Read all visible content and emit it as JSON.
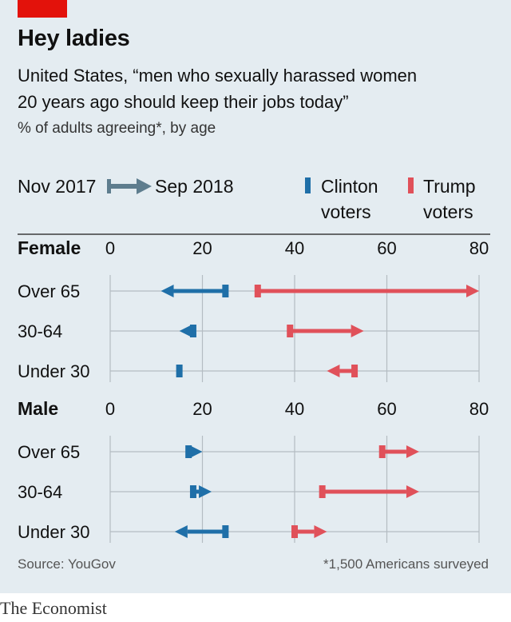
{
  "header": {
    "title": "Hey ladies",
    "subtitle_line1": "United States, “men who sexually harassed women",
    "subtitle_line2": "20 years ago should keep their jobs today”",
    "note": "% of adults agreeing*, by age"
  },
  "legend": {
    "from": "Nov 2017",
    "to": "Sep 2018",
    "clinton_line1": "Clinton",
    "clinton_line2": "voters",
    "trump_line1": "Trump",
    "trump_line2": "voters"
  },
  "colors": {
    "clinton": "#1f6fa8",
    "trump": "#e0515a",
    "legend_arrow": "#5e7d8e",
    "background": "#e4ecf1",
    "grid": "#b4bcc2"
  },
  "footer": {
    "source": "Source: YouGov",
    "footnote": "*1,500 Americans surveyed",
    "brand": "The Economist"
  },
  "chart_data": {
    "type": "arrow-dumbbell",
    "x_ticks": [
      0,
      20,
      40,
      60,
      80
    ],
    "xlim": [
      0,
      80
    ],
    "panels": [
      {
        "label": "Female",
        "rows": [
          {
            "category": "Over 65",
            "clinton": {
              "nov_2017": 25,
              "sep_2018": 11
            },
            "trump": {
              "nov_2017": 32,
              "sep_2018": 80
            }
          },
          {
            "category": "30-64",
            "clinton": {
              "nov_2017": 18,
              "sep_2018": 15
            },
            "trump": {
              "nov_2017": 39,
              "sep_2018": 55
            }
          },
          {
            "category": "Under 30",
            "clinton": {
              "nov_2017": 15,
              "sep_2018": 15
            },
            "trump": {
              "nov_2017": 53,
              "sep_2018": 47
            }
          }
        ]
      },
      {
        "label": "Male",
        "rows": [
          {
            "category": "Over 65",
            "clinton": {
              "nov_2017": 17,
              "sep_2018": 20
            },
            "trump": {
              "nov_2017": 59,
              "sep_2018": 67
            }
          },
          {
            "category": "30-64",
            "clinton": {
              "nov_2017": 18,
              "sep_2018": 22
            },
            "trump": {
              "nov_2017": 46,
              "sep_2018": 67
            }
          },
          {
            "category": "Under 30",
            "clinton": {
              "nov_2017": 25,
              "sep_2018": 14
            },
            "trump": {
              "nov_2017": 40,
              "sep_2018": 47
            }
          }
        ]
      }
    ]
  }
}
